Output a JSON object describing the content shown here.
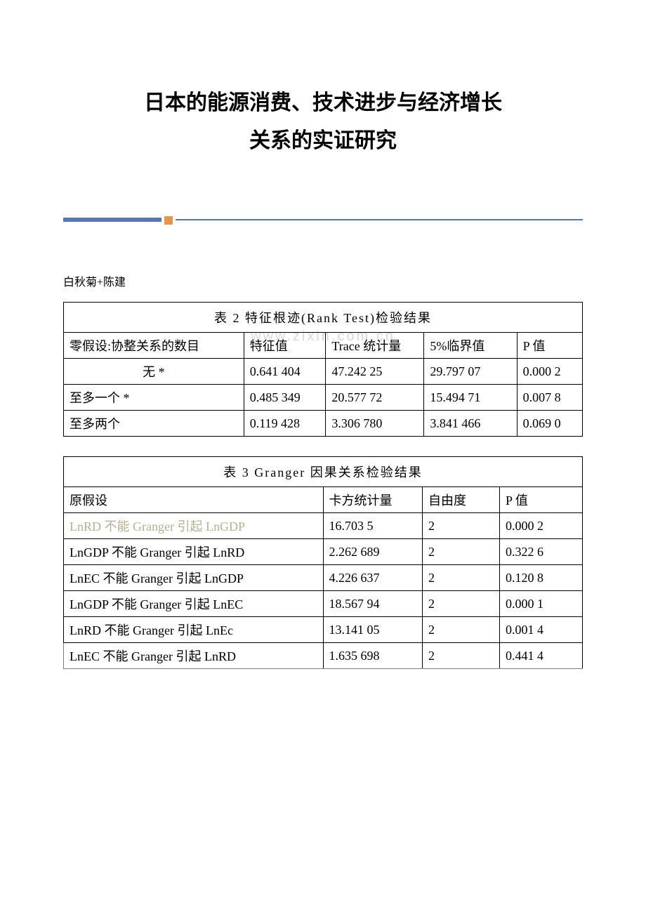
{
  "title_line1": "日本的能源消费、技术进步与经济增长",
  "title_line2": "关系的实证研究",
  "authors": "白秋菊+陈建",
  "watermark": "www.zixin.com.cn",
  "table2": {
    "caption": "表 2  特征根迹(Rank  Test)检验结果",
    "headers": [
      "零假设:协整关系的数目",
      "特征值",
      "Trace 统计量",
      "5%临界值",
      "P 值"
    ],
    "rows": [
      [
        "无 *",
        "0.641 404",
        "47.242 25",
        "29.797 07",
        "0.000 2"
      ],
      [
        "至多一个 *",
        "0.485 349",
        "20.577 72",
        "15.494 71",
        "0.007 8"
      ],
      [
        "至多两个",
        "0.119 428",
        "3.306 780",
        "3.841 466",
        "0.069 0"
      ]
    ]
  },
  "table3": {
    "caption": "表 3  Granger 因果关系检验结果",
    "headers": [
      "原假设",
      "卡方统计量",
      "自由度",
      "P 值"
    ],
    "rows": [
      [
        "LnRD 不能 Granger 引起 LnGDP",
        "16.703 5",
        "2",
        "0.000 2"
      ],
      [
        "LnGDP 不能 Granger 引起 LnRD",
        "2.262 689",
        "2",
        "0.322 6"
      ],
      [
        "LnEC 不能 Granger 引起 LnGDP",
        "4.226 637",
        "2",
        "0.120 8"
      ],
      [
        "LnGDP 不能 Granger 引起 LnEC",
        "18.567 94",
        "2",
        "0.000 1"
      ],
      [
        "LnRD 不能 Granger 引起 LnEc",
        "13.141 05",
        "2",
        "0.001 4"
      ],
      [
        "LnEC 不能 Granger 引起 LnRD",
        "1.635 698",
        "2",
        "0.441 4"
      ]
    ]
  }
}
